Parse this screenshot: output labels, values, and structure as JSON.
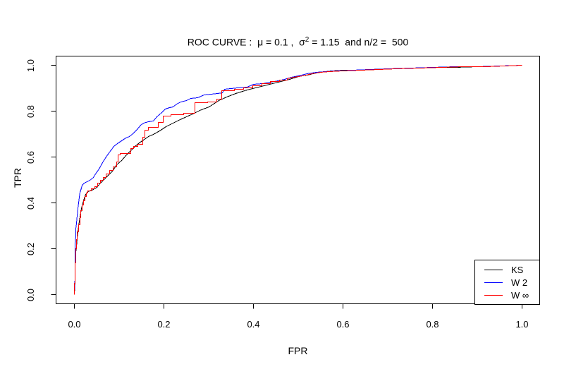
{
  "figure": {
    "background": "#ffffff",
    "title": {
      "prefix": "ROC CURVE :  μ = 0.1 ,  σ",
      "sup": "2",
      "suffix": " = 1.15  and n/2 =  500"
    },
    "x_axis": {
      "label": "FPR",
      "tick_labels": [
        "0.0",
        "0.2",
        "0.4",
        "0.6",
        "0.8",
        "1.0"
      ],
      "tick_values": [
        0.0,
        0.2,
        0.4,
        0.6,
        0.8,
        1.0
      ]
    },
    "y_axis": {
      "label": "TPR",
      "tick_labels": [
        "0.0",
        "0.2",
        "0.4",
        "0.6",
        "0.8",
        "1.0"
      ],
      "tick_values": [
        0.0,
        0.2,
        0.4,
        0.6,
        0.8,
        1.0
      ]
    },
    "legend": {
      "items": [
        {
          "label": "KS",
          "color": "#000000"
        },
        {
          "label": "W 2",
          "color": "#0000ff"
        },
        {
          "label": "W ∞",
          "color": "#ff0000"
        }
      ]
    }
  },
  "chart_data": {
    "type": "line",
    "title": "ROC CURVE : μ = 0.1 , σ² = 1.15 and n/2 = 500",
    "xlabel": "FPR",
    "ylabel": "TPR",
    "xlim": [
      0,
      1
    ],
    "ylim": [
      0,
      1
    ],
    "grid": false,
    "legend_position": "bottom-right",
    "series": [
      {
        "name": "KS",
        "color": "#000000",
        "points": [
          [
            0,
            0
          ],
          [
            0.002,
            0.06
          ],
          [
            0.002,
            0.16
          ],
          [
            0.004,
            0.21
          ],
          [
            0.006,
            0.245
          ],
          [
            0.008,
            0.275
          ],
          [
            0.01,
            0.3
          ],
          [
            0.013,
            0.34
          ],
          [
            0.016,
            0.375
          ],
          [
            0.02,
            0.41
          ],
          [
            0.025,
            0.438
          ],
          [
            0.03,
            0.45
          ],
          [
            0.04,
            0.455
          ],
          [
            0.05,
            0.468
          ],
          [
            0.057,
            0.483
          ],
          [
            0.065,
            0.5
          ],
          [
            0.075,
            0.52
          ],
          [
            0.085,
            0.54
          ],
          [
            0.095,
            0.565
          ],
          [
            0.105,
            0.585
          ],
          [
            0.115,
            0.605
          ],
          [
            0.125,
            0.625
          ],
          [
            0.135,
            0.645
          ],
          [
            0.145,
            0.662
          ],
          [
            0.155,
            0.675
          ],
          [
            0.165,
            0.688
          ],
          [
            0.176,
            0.7
          ],
          [
            0.19,
            0.715
          ],
          [
            0.205,
            0.732
          ],
          [
            0.22,
            0.748
          ],
          [
            0.236,
            0.762
          ],
          [
            0.25,
            0.775
          ],
          [
            0.268,
            0.79
          ],
          [
            0.281,
            0.802
          ],
          [
            0.3,
            0.82
          ],
          [
            0.323,
            0.845
          ],
          [
            0.34,
            0.862
          ],
          [
            0.36,
            0.878
          ],
          [
            0.386,
            0.893
          ],
          [
            0.417,
            0.908
          ],
          [
            0.449,
            0.922
          ],
          [
            0.48,
            0.94
          ],
          [
            0.5,
            0.95
          ],
          [
            0.52,
            0.958
          ],
          [
            0.54,
            0.967
          ],
          [
            0.56,
            0.973
          ],
          [
            0.575,
            0.975
          ],
          [
            0.6,
            0.977
          ],
          [
            0.63,
            0.98
          ],
          [
            0.66,
            0.982
          ],
          [
            0.7,
            0.985
          ],
          [
            0.75,
            0.987
          ],
          [
            0.8,
            0.99
          ],
          [
            0.85,
            0.992
          ],
          [
            0.9,
            0.995
          ],
          [
            0.95,
            0.997
          ],
          [
            1.0,
            0.999
          ]
        ]
      },
      {
        "name": "W 2",
        "color": "#0000ff",
        "points": [
          [
            0,
            0
          ],
          [
            0.001,
            0.08
          ],
          [
            0.001,
            0.17
          ],
          [
            0.002,
            0.22
          ],
          [
            0.003,
            0.255
          ],
          [
            0.003,
            0.285
          ],
          [
            0.005,
            0.31
          ],
          [
            0.006,
            0.345
          ],
          [
            0.008,
            0.375
          ],
          [
            0.009,
            0.4
          ],
          [
            0.011,
            0.425
          ],
          [
            0.013,
            0.445
          ],
          [
            0.015,
            0.465
          ],
          [
            0.018,
            0.478
          ],
          [
            0.022,
            0.487
          ],
          [
            0.028,
            0.493
          ],
          [
            0.035,
            0.5
          ],
          [
            0.042,
            0.512
          ],
          [
            0.047,
            0.525
          ],
          [
            0.055,
            0.548
          ],
          [
            0.063,
            0.575
          ],
          [
            0.071,
            0.6
          ],
          [
            0.079,
            0.622
          ],
          [
            0.088,
            0.645
          ],
          [
            0.096,
            0.66
          ],
          [
            0.105,
            0.672
          ],
          [
            0.115,
            0.682
          ],
          [
            0.123,
            0.69
          ],
          [
            0.131,
            0.702
          ],
          [
            0.14,
            0.72
          ],
          [
            0.148,
            0.737
          ],
          [
            0.155,
            0.748
          ],
          [
            0.165,
            0.753
          ],
          [
            0.176,
            0.758
          ],
          [
            0.185,
            0.775
          ],
          [
            0.195,
            0.795
          ],
          [
            0.203,
            0.808
          ],
          [
            0.212,
            0.814
          ],
          [
            0.22,
            0.818
          ],
          [
            0.228,
            0.83
          ],
          [
            0.238,
            0.84
          ],
          [
            0.25,
            0.845
          ],
          [
            0.26,
            0.856
          ],
          [
            0.275,
            0.858
          ],
          [
            0.29,
            0.87
          ],
          [
            0.305,
            0.874
          ],
          [
            0.32,
            0.877
          ],
          [
            0.33,
            0.88
          ],
          [
            0.335,
            0.896
          ],
          [
            0.35,
            0.9
          ],
          [
            0.365,
            0.902
          ],
          [
            0.386,
            0.906
          ],
          [
            0.4,
            0.916
          ],
          [
            0.42,
            0.921
          ],
          [
            0.438,
            0.926
          ],
          [
            0.455,
            0.932
          ],
          [
            0.47,
            0.938
          ],
          [
            0.485,
            0.947
          ],
          [
            0.5,
            0.955
          ],
          [
            0.52,
            0.962
          ],
          [
            0.54,
            0.968
          ],
          [
            0.56,
            0.973
          ],
          [
            0.58,
            0.976
          ],
          [
            0.62,
            0.978
          ],
          [
            0.66,
            0.982
          ],
          [
            0.7,
            0.985
          ],
          [
            0.75,
            0.988
          ],
          [
            0.8,
            0.99
          ],
          [
            0.85,
            0.993
          ],
          [
            0.9,
            0.995
          ],
          [
            0.95,
            0.997
          ],
          [
            1.0,
            0.999
          ]
        ]
      },
      {
        "name": "W ∞",
        "color": "#ff0000",
        "points": [
          [
            0,
            0
          ],
          [
            0,
            0.05
          ],
          [
            0.002,
            0.05
          ],
          [
            0.002,
            0.14
          ],
          [
            0.003,
            0.14
          ],
          [
            0.003,
            0.2
          ],
          [
            0.005,
            0.2
          ],
          [
            0.005,
            0.24
          ],
          [
            0.007,
            0.24
          ],
          [
            0.007,
            0.275
          ],
          [
            0.009,
            0.275
          ],
          [
            0.009,
            0.305
          ],
          [
            0.012,
            0.305
          ],
          [
            0.012,
            0.335
          ],
          [
            0.014,
            0.335
          ],
          [
            0.014,
            0.365
          ],
          [
            0.017,
            0.365
          ],
          [
            0.017,
            0.39
          ],
          [
            0.02,
            0.39
          ],
          [
            0.02,
            0.41
          ],
          [
            0.023,
            0.41
          ],
          [
            0.023,
            0.428
          ],
          [
            0.027,
            0.428
          ],
          [
            0.027,
            0.442
          ],
          [
            0.03,
            0.442
          ],
          [
            0.03,
            0.453
          ],
          [
            0.038,
            0.453
          ],
          [
            0.038,
            0.462
          ],
          [
            0.045,
            0.462
          ],
          [
            0.045,
            0.472
          ],
          [
            0.052,
            0.472
          ],
          [
            0.052,
            0.487
          ],
          [
            0.058,
            0.487
          ],
          [
            0.058,
            0.5
          ],
          [
            0.064,
            0.5
          ],
          [
            0.064,
            0.512
          ],
          [
            0.071,
            0.512
          ],
          [
            0.071,
            0.525
          ],
          [
            0.079,
            0.525
          ],
          [
            0.079,
            0.542
          ],
          [
            0.087,
            0.542
          ],
          [
            0.087,
            0.557
          ],
          [
            0.094,
            0.557
          ],
          [
            0.094,
            0.577
          ],
          [
            0.098,
            0.577
          ],
          [
            0.098,
            0.608
          ],
          [
            0.103,
            0.608
          ],
          [
            0.103,
            0.615
          ],
          [
            0.126,
            0.615
          ],
          [
            0.126,
            0.637
          ],
          [
            0.133,
            0.637
          ],
          [
            0.133,
            0.646
          ],
          [
            0.142,
            0.646
          ],
          [
            0.142,
            0.656
          ],
          [
            0.153,
            0.656
          ],
          [
            0.153,
            0.685
          ],
          [
            0.157,
            0.685
          ],
          [
            0.157,
            0.718
          ],
          [
            0.166,
            0.718
          ],
          [
            0.166,
            0.729
          ],
          [
            0.187,
            0.729
          ],
          [
            0.187,
            0.752
          ],
          [
            0.199,
            0.752
          ],
          [
            0.199,
            0.778
          ],
          [
            0.216,
            0.778
          ],
          [
            0.216,
            0.785
          ],
          [
            0.244,
            0.785
          ],
          [
            0.244,
            0.792
          ],
          [
            0.27,
            0.792
          ],
          [
            0.27,
            0.836
          ],
          [
            0.298,
            0.836
          ],
          [
            0.298,
            0.841
          ],
          [
            0.318,
            0.841
          ],
          [
            0.318,
            0.852
          ],
          [
            0.329,
            0.852
          ],
          [
            0.329,
            0.888
          ],
          [
            0.358,
            0.888
          ],
          [
            0.358,
            0.895
          ],
          [
            0.378,
            0.895
          ],
          [
            0.378,
            0.901
          ],
          [
            0.398,
            0.901
          ],
          [
            0.398,
            0.911
          ],
          [
            0.419,
            0.911
          ],
          [
            0.419,
            0.92
          ],
          [
            0.438,
            0.92
          ],
          [
            0.438,
            0.928
          ],
          [
            0.458,
            0.928
          ],
          [
            0.458,
            0.935
          ],
          [
            0.475,
            0.935
          ],
          [
            0.475,
            0.942
          ],
          [
            0.49,
            0.948
          ],
          [
            0.51,
            0.955
          ],
          [
            0.53,
            0.962
          ],
          [
            0.55,
            0.969
          ],
          [
            0.57,
            0.973
          ],
          [
            0.6,
            0.976
          ],
          [
            0.64,
            0.978
          ],
          [
            0.68,
            0.982
          ],
          [
            0.72,
            0.985
          ],
          [
            0.77,
            0.988
          ],
          [
            0.82,
            0.99
          ],
          [
            0.87,
            0.993
          ],
          [
            0.92,
            0.995
          ],
          [
            0.96,
            0.997
          ],
          [
            1.0,
            0.999
          ]
        ]
      }
    ]
  }
}
